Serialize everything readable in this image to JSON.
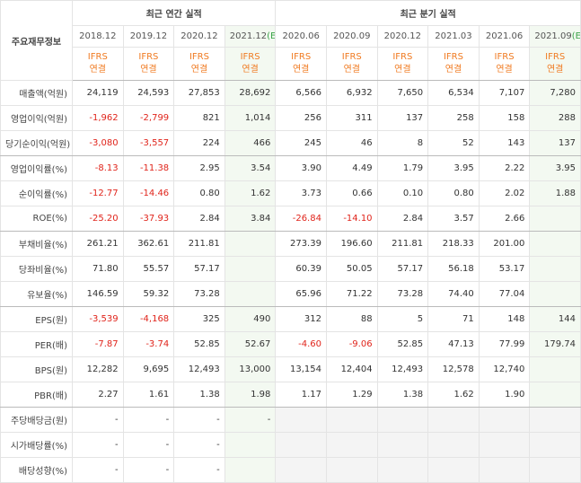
{
  "header": {
    "corner": "주요재무정보",
    "groups": [
      "최근 연간 실적",
      "최근 분기 실적"
    ],
    "columns": [
      {
        "period": "2018.12",
        "standard": "IFRS",
        "basis": "연결"
      },
      {
        "period": "2019.12",
        "standard": "IFRS",
        "basis": "연결"
      },
      {
        "period": "2020.12",
        "standard": "IFRS",
        "basis": "연결"
      },
      {
        "period": "2021.12",
        "estimate": "(E)",
        "standard": "IFRS",
        "basis": "연결"
      },
      {
        "period": "2020.06",
        "standard": "IFRS",
        "basis": "연결"
      },
      {
        "period": "2020.09",
        "standard": "IFRS",
        "basis": "연결"
      },
      {
        "period": "2020.12",
        "standard": "IFRS",
        "basis": "연결"
      },
      {
        "period": "2021.03",
        "standard": "IFRS",
        "basis": "연결"
      },
      {
        "period": "2021.06",
        "standard": "IFRS",
        "basis": "연결"
      },
      {
        "period": "2021.09",
        "estimate": "(E)",
        "standard": "IFRS",
        "basis": "연결"
      }
    ]
  },
  "rows": [
    {
      "label": "매출액(억원)",
      "cells": [
        "24,119",
        "24,593",
        "27,853",
        "28,692",
        "6,566",
        "6,932",
        "7,650",
        "6,534",
        "7,107",
        "7,280"
      ]
    },
    {
      "label": "영업이익(억원)",
      "cells": [
        "-1,962",
        "-2,799",
        "821",
        "1,014",
        "256",
        "311",
        "137",
        "258",
        "158",
        "288"
      ]
    },
    {
      "label": "당기순이익(억원)",
      "cells": [
        "-3,080",
        "-3,557",
        "224",
        "466",
        "245",
        "46",
        "8",
        "52",
        "143",
        "137"
      ]
    },
    {
      "label": "영업이익률(%)",
      "cells": [
        "-8.13",
        "-11.38",
        "2.95",
        "3.54",
        "3.90",
        "4.49",
        "1.79",
        "3.95",
        "2.22",
        "3.95"
      ]
    },
    {
      "label": "순이익률(%)",
      "cells": [
        "-12.77",
        "-14.46",
        "0.80",
        "1.62",
        "3.73",
        "0.66",
        "0.10",
        "0.80",
        "2.02",
        "1.88"
      ]
    },
    {
      "label": "ROE(%)",
      "cells": [
        "-25.20",
        "-37.93",
        "2.84",
        "3.84",
        "-26.84",
        "-14.10",
        "2.84",
        "3.57",
        "2.66",
        null
      ]
    },
    {
      "label": "부채비율(%)",
      "cells": [
        "261.21",
        "362.61",
        "211.81",
        null,
        "273.39",
        "196.60",
        "211.81",
        "218.33",
        "201.00",
        null
      ]
    },
    {
      "label": "당좌비율(%)",
      "cells": [
        "71.80",
        "55.57",
        "57.17",
        null,
        "60.39",
        "50.05",
        "57.17",
        "56.18",
        "53.17",
        null
      ]
    },
    {
      "label": "유보율(%)",
      "cells": [
        "146.59",
        "59.32",
        "73.28",
        null,
        "65.96",
        "71.22",
        "73.28",
        "74.40",
        "77.04",
        null
      ]
    },
    {
      "label": "EPS(원)",
      "cells": [
        "-3,539",
        "-4,168",
        "325",
        "490",
        "312",
        "88",
        "5",
        "71",
        "148",
        "144"
      ]
    },
    {
      "label": "PER(배)",
      "cells": [
        "-7.87",
        "-3.74",
        "52.85",
        "52.67",
        "-4.60",
        "-9.06",
        "52.85",
        "47.13",
        "77.99",
        "179.74"
      ]
    },
    {
      "label": "BPS(원)",
      "cells": [
        "12,282",
        "9,695",
        "12,493",
        "13,000",
        "13,154",
        "12,404",
        "12,493",
        "12,578",
        "12,740",
        null
      ]
    },
    {
      "label": "PBR(배)",
      "cells": [
        "2.27",
        "1.61",
        "1.38",
        "1.98",
        "1.17",
        "1.29",
        "1.38",
        "1.62",
        "1.90",
        null
      ]
    },
    {
      "label": "주당배당금(원)",
      "cells": [
        "-",
        "-",
        "-",
        "-",
        null,
        null,
        null,
        null,
        null,
        null
      ]
    },
    {
      "label": "시가배당률(%)",
      "cells": [
        "-",
        "-",
        "-",
        null,
        null,
        null,
        null,
        null,
        null,
        null
      ]
    },
    {
      "label": "배당성향(%)",
      "cells": [
        "-",
        "-",
        "-",
        null,
        null,
        null,
        null,
        null,
        null,
        null
      ]
    }
  ]
}
